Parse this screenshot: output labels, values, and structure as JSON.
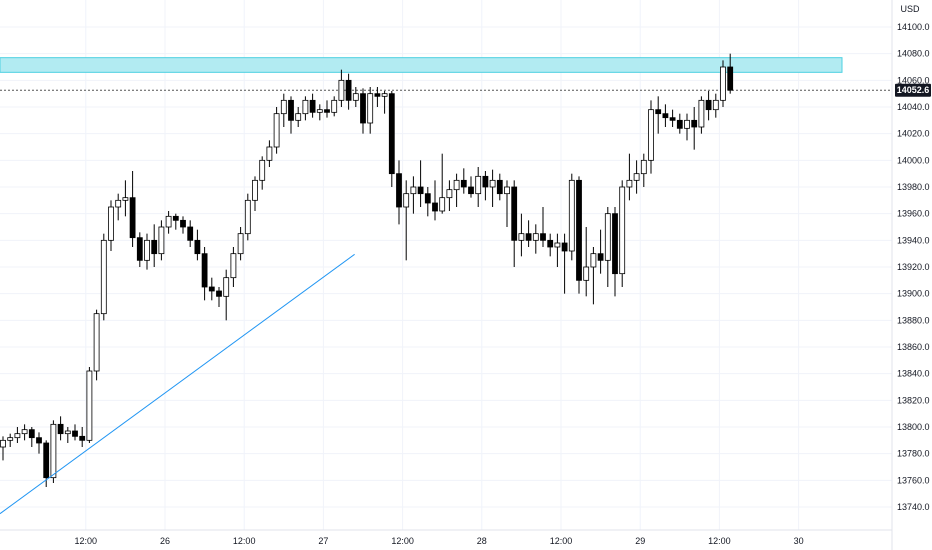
{
  "currency_label": "USD",
  "last_price_label": "14052.6",
  "chart_data": {
    "type": "candlestick",
    "title": "",
    "ylim": [
      13728,
      14115
    ],
    "grid": true,
    "price_axis": "right",
    "y_ticks": [
      13740,
      13760,
      13780,
      13800,
      13820,
      13840,
      13860,
      13880,
      13900,
      13920,
      13940,
      13960,
      13980,
      14000,
      14020,
      14040,
      14060,
      14080,
      14100
    ],
    "y_tick_labels": [
      "13740.0",
      "13760.0",
      "13780.0",
      "13800.0",
      "13820.0",
      "13840.0",
      "13860.0",
      "13880.0",
      "13900.0",
      "13920.0",
      "13940.0",
      "13960.0",
      "13980.0",
      "14000.0",
      "14020.0",
      "14040.0",
      "14060.0",
      "14080.0",
      "14100.0"
    ],
    "x_tick_labels": [
      {
        "label": "12:00",
        "bar": 11.5
      },
      {
        "label": "26",
        "bar": 22.5
      },
      {
        "label": "12:00",
        "bar": 33.5
      },
      {
        "label": "27",
        "bar": 44.5
      },
      {
        "label": "12:00",
        "bar": 55.5
      },
      {
        "label": "28",
        "bar": 66.5
      },
      {
        "label": "12:00",
        "bar": 77.5
      },
      {
        "label": "29",
        "bar": 88.5
      },
      {
        "label": "12:00",
        "bar": 99.5
      },
      {
        "label": "30",
        "bar": 110.5
      }
    ],
    "candles": [
      [
        13785,
        13793,
        13775,
        13790
      ],
      [
        13790,
        13795,
        13785,
        13792
      ],
      [
        13792,
        13800,
        13788,
        13795
      ],
      [
        13795,
        13802,
        13790,
        13798
      ],
      [
        13798,
        13800,
        13785,
        13792
      ],
      [
        13792,
        13796,
        13780,
        13788
      ],
      [
        13788,
        13790,
        13755,
        13762
      ],
      [
        13762,
        13805,
        13758,
        13802
      ],
      [
        13802,
        13808,
        13790,
        13795
      ],
      [
        13795,
        13800,
        13788,
        13797
      ],
      [
        13797,
        13802,
        13790,
        13793
      ],
      [
        13793,
        13800,
        13785,
        13790
      ],
      [
        13790,
        13845,
        13788,
        13842
      ],
      [
        13842,
        13888,
        13835,
        13885
      ],
      [
        13885,
        13945,
        13880,
        13940
      ],
      [
        13940,
        13970,
        13932,
        13965
      ],
      [
        13965,
        13975,
        13955,
        13970
      ],
      [
        13970,
        13985,
        13958,
        13972
      ],
      [
        13972,
        13992,
        13935,
        13942
      ],
      [
        13942,
        13946,
        13920,
        13925
      ],
      [
        13925,
        13945,
        13918,
        13940
      ],
      [
        13940,
        13952,
        13920,
        13930
      ],
      [
        13930,
        13955,
        13925,
        13950
      ],
      [
        13950,
        13962,
        13945,
        13958
      ],
      [
        13958,
        13960,
        13948,
        13955
      ],
      [
        13955,
        13958,
        13945,
        13950
      ],
      [
        13950,
        13955,
        13935,
        13940
      ],
      [
        13940,
        13948,
        13925,
        13930
      ],
      [
        13930,
        13935,
        13895,
        13905
      ],
      [
        13905,
        13912,
        13895,
        13902
      ],
      [
        13902,
        13905,
        13890,
        13898
      ],
      [
        13898,
        13918,
        13880,
        13912
      ],
      [
        13912,
        13935,
        13905,
        13930
      ],
      [
        13930,
        13950,
        13925,
        13945
      ],
      [
        13945,
        13975,
        13940,
        13970
      ],
      [
        13970,
        13988,
        13962,
        13985
      ],
      [
        13985,
        14003,
        13978,
        14000
      ],
      [
        14000,
        14015,
        13995,
        14010
      ],
      [
        14010,
        14040,
        14005,
        14035
      ],
      [
        14035,
        14050,
        14025,
        14045
      ],
      [
        14045,
        14048,
        14020,
        14030
      ],
      [
        14030,
        14040,
        14025,
        14035
      ],
      [
        14035,
        14048,
        14030,
        14045
      ],
      [
        14045,
        14050,
        14032,
        14036
      ],
      [
        14036,
        14042,
        14030,
        14038
      ],
      [
        14038,
        14045,
        14032,
        14036
      ],
      [
        14036,
        14048,
        14033,
        14045
      ],
      [
        14045,
        14068,
        14040,
        14060
      ],
      [
        14060,
        14065,
        14038,
        14045
      ],
      [
        14045,
        14055,
        14040,
        14050
      ],
      [
        14050,
        14054,
        14020,
        14028
      ],
      [
        14028,
        14055,
        14020,
        14050
      ],
      [
        14050,
        14055,
        14040,
        14048
      ],
      [
        14048,
        14052,
        14035,
        14050
      ],
      [
        14050,
        14052,
        13980,
        13990
      ],
      [
        13990,
        14000,
        13952,
        13965
      ],
      [
        13965,
        13985,
        13925,
        13975
      ],
      [
        13975,
        13988,
        13960,
        13980
      ],
      [
        13980,
        14000,
        13965,
        13975
      ],
      [
        13975,
        13980,
        13958,
        13968
      ],
      [
        13968,
        13985,
        13955,
        13962
      ],
      [
        13962,
        14005,
        13960,
        13972
      ],
      [
        13972,
        13985,
        13962,
        13978
      ],
      [
        13978,
        13990,
        13965,
        13985
      ],
      [
        13985,
        13994,
        13975,
        13980
      ],
      [
        13980,
        13988,
        13972,
        13975
      ],
      [
        13975,
        13995,
        13965,
        13988
      ],
      [
        13988,
        13992,
        13970,
        13980
      ],
      [
        13980,
        13993,
        13965,
        13985
      ],
      [
        13985,
        13990,
        13970,
        13975
      ],
      [
        13975,
        13985,
        13950,
        13980
      ],
      [
        13980,
        13985,
        13920,
        13940
      ],
      [
        13940,
        13960,
        13928,
        13945
      ],
      [
        13945,
        13955,
        13935,
        13940
      ],
      [
        13940,
        13952,
        13930,
        13945
      ],
      [
        13945,
        13965,
        13935,
        13940
      ],
      [
        13940,
        13945,
        13928,
        13935
      ],
      [
        13935,
        13945,
        13920,
        13938
      ],
      [
        13938,
        13945,
        13900,
        13932
      ],
      [
        13932,
        13990,
        13925,
        13985
      ],
      [
        13985,
        13988,
        13900,
        13910
      ],
      [
        13910,
        13950,
        13898,
        13920
      ],
      [
        13920,
        13935,
        13892,
        13930
      ],
      [
        13930,
        13948,
        13915,
        13925
      ],
      [
        13925,
        13965,
        13905,
        13960
      ],
      [
        13960,
        13965,
        13898,
        13915
      ],
      [
        13915,
        13985,
        13905,
        13980
      ],
      [
        13980,
        14005,
        13970,
        13985
      ],
      [
        13985,
        14000,
        13975,
        13990
      ],
      [
        13990,
        14005,
        13980,
        14000
      ],
      [
        14000,
        14045,
        13990,
        14038
      ],
      [
        14038,
        14048,
        14020,
        14035
      ],
      [
        14035,
        14042,
        14025,
        14032
      ],
      [
        14032,
        14038,
        14025,
        14030
      ],
      [
        14030,
        14035,
        14020,
        14024
      ],
      [
        14024,
        14035,
        14015,
        14030
      ],
      [
        14030,
        14040,
        14008,
        14025
      ],
      [
        14025,
        14048,
        14020,
        14045
      ],
      [
        14045,
        14052,
        14030,
        14038
      ],
      [
        14038,
        14050,
        14032,
        14045
      ],
      [
        14045,
        14075,
        14040,
        14070
      ],
      [
        14070,
        14080,
        14050,
        14052.6
      ]
    ],
    "annotations": {
      "resistance_zone": [
        14066,
        14077
      ],
      "last_price": 14052.6,
      "trend_line": [
        {
          "bar": 0,
          "price": 13735
        },
        {
          "bar": 43,
          "price": 13928
        }
      ]
    },
    "colors": {
      "up_candle": "#ffffff",
      "down_candle": "#000000",
      "candle_outline": "#000000",
      "zone": "#b2ebf2",
      "zone_border": "#4dd0e1",
      "trend_line": "#2196f3",
      "grid": "#f0f3fa",
      "price_tag": "#131722"
    }
  }
}
